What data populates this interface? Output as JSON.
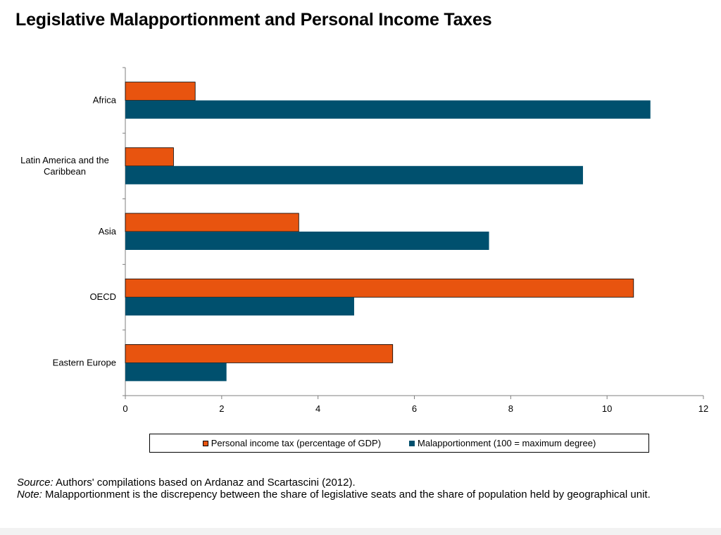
{
  "title": "Legislative Malapportionment and Personal Income Taxes",
  "colors": {
    "tax": "#e8540f",
    "malapportionment": "#00506e"
  },
  "chart_data": {
    "type": "bar",
    "orientation": "horizontal",
    "categories": [
      "Africa",
      "Latin America and the Caribbean",
      "Asia",
      "OECD",
      "Eastern Europe"
    ],
    "category_display": [
      [
        "Africa"
      ],
      [
        "Latin America and the",
        "Caribbean"
      ],
      [
        "Asia"
      ],
      [
        "OECD"
      ],
      [
        "Eastern Europe"
      ]
    ],
    "series": [
      {
        "name": "Personal income tax (percentage of GDP)",
        "values": [
          1.45,
          1.0,
          3.6,
          10.55,
          5.55
        ]
      },
      {
        "name": "Malapportionment (100 = maximum degree)",
        "values": [
          10.9,
          9.5,
          7.55,
          4.75,
          2.1
        ]
      }
    ],
    "xlim": [
      0,
      12
    ],
    "x_ticks": [
      "0",
      "2",
      "4",
      "6",
      "8",
      "10",
      "12"
    ],
    "grid": false,
    "legend_position": "bottom"
  },
  "notes": {
    "source_label": "Source:",
    "source_text": " Authors' compilations based on Ardanaz and Scartascini (2012).",
    "note_label": "Note:",
    "note_text": " Malapportionment is the discrepency between the share of legislative seats and the share of population held by geographical unit."
  }
}
